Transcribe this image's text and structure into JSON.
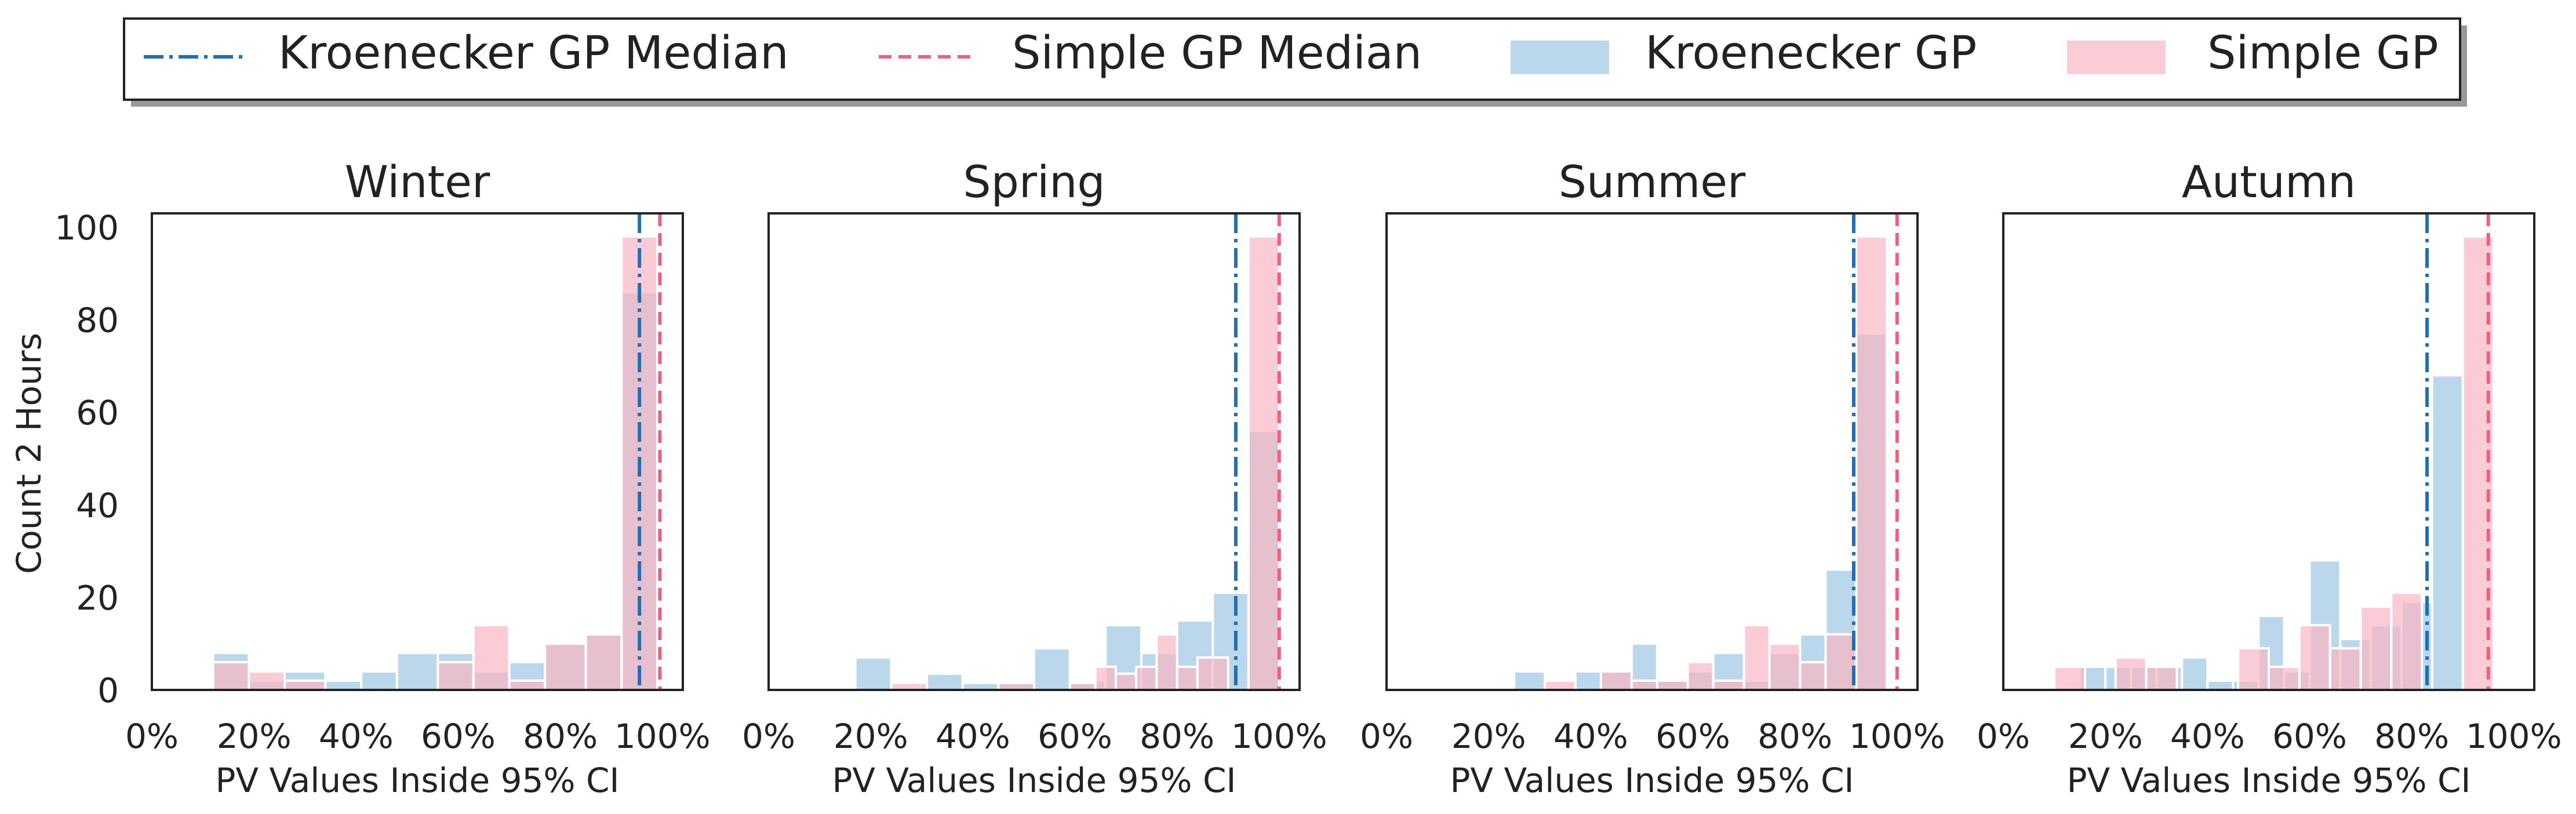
{
  "legend": {
    "items": [
      {
        "label": "Kroenecker GP Median",
        "kind": "dashdot-line",
        "color": "#1f6fb4"
      },
      {
        "label": "Simple GP Median",
        "kind": "dashed-line",
        "color": "#f0607a"
      },
      {
        "label": "Kroenecker GP",
        "kind": "patch",
        "color": "#9ec6e3"
      },
      {
        "label": "Simple GP",
        "kind": "patch",
        "color": "#f9b6c4"
      }
    ]
  },
  "colors": {
    "kroenecker": "#9ec6e3",
    "simple": "#f9b6c4",
    "kroenecker_median": "#1f6fb4",
    "simple_median": "#f0607a"
  },
  "shared": {
    "ylabel": "Count 2 Hours",
    "xlabel": "PV Values Inside 95% CI",
    "xticks": [
      "0%",
      "20%",
      "40%",
      "60%",
      "80%",
      "100%"
    ],
    "yticks": [
      "0",
      "20",
      "40",
      "60",
      "80",
      "100"
    ]
  },
  "chart_data": [
    {
      "type": "bar",
      "title": "Winter",
      "xlim": [
        0,
        104
      ],
      "ylim": [
        0,
        103
      ],
      "series": [
        {
          "name": "Kroenecker GP",
          "bars": [
            [
              12,
              19,
              8
            ],
            [
              19,
              26,
              2
            ],
            [
              26,
              34,
              4
            ],
            [
              34,
              41,
              2
            ],
            [
              41,
              48,
              4
            ],
            [
              48,
              56,
              8
            ],
            [
              56,
              63,
              8
            ],
            [
              63,
              70,
              4
            ],
            [
              70,
              77,
              6
            ],
            [
              77,
              85,
              10
            ],
            [
              85,
              92,
              12
            ],
            [
              92,
              99,
              86
            ]
          ]
        },
        {
          "name": "Simple GP",
          "bars": [
            [
              12,
              19,
              6
            ],
            [
              19,
              26,
              4
            ],
            [
              26,
              34,
              2
            ],
            [
              34,
              41,
              0
            ],
            [
              41,
              48,
              0
            ],
            [
              48,
              56,
              0
            ],
            [
              56,
              63,
              6
            ],
            [
              63,
              70,
              14
            ],
            [
              70,
              77,
              2
            ],
            [
              77,
              85,
              10
            ],
            [
              85,
              92,
              12
            ],
            [
              92,
              99,
              98
            ]
          ]
        }
      ],
      "medians": {
        "kroenecker": 95.5,
        "simple": 99.5
      }
    },
    {
      "type": "bar",
      "title": "Spring",
      "xlim": [
        0,
        104
      ],
      "ylim": [
        0,
        103
      ],
      "series": [
        {
          "name": "Kroenecker GP",
          "bars": [
            [
              17,
              24,
              7
            ],
            [
              24,
              31,
              0
            ],
            [
              31,
              38,
              3.5
            ],
            [
              38,
              45,
              1.5
            ],
            [
              45,
              52,
              1.5
            ],
            [
              52,
              59,
              9
            ],
            [
              59,
              66,
              2
            ],
            [
              66,
              73,
              14
            ],
            [
              73,
              80,
              8
            ],
            [
              80,
              87,
              15
            ],
            [
              87,
              94,
              21
            ],
            [
              94,
              100,
              56
            ]
          ]
        },
        {
          "name": "Simple GP",
          "bars": [
            [
              24,
              31,
              1.5
            ],
            [
              31,
              38,
              0
            ],
            [
              38,
              45,
              0
            ],
            [
              45,
              52,
              1.5
            ],
            [
              52,
              59,
              0
            ],
            [
              59,
              64,
              1.5
            ],
            [
              64,
              68,
              5
            ],
            [
              68,
              72,
              3.5
            ],
            [
              72,
              76,
              5
            ],
            [
              76,
              80,
              12
            ],
            [
              80,
              84,
              5
            ],
            [
              84,
              90,
              7
            ],
            [
              94,
              100,
              98
            ]
          ]
        }
      ],
      "medians": {
        "kroenecker": 91.5,
        "simple": 100
      }
    },
    {
      "type": "bar",
      "title": "Summer",
      "xlim": [
        0,
        104
      ],
      "ylim": [
        0,
        103
      ],
      "series": [
        {
          "name": "Kroenecker GP",
          "bars": [
            [
              25,
              31,
              4
            ],
            [
              31,
              37,
              0
            ],
            [
              37,
              42,
              4
            ],
            [
              42,
              48,
              4
            ],
            [
              48,
              53,
              10
            ],
            [
              53,
              59,
              2
            ],
            [
              59,
              64,
              4
            ],
            [
              64,
              70,
              8
            ],
            [
              70,
              75,
              2
            ],
            [
              75,
              81,
              8
            ],
            [
              81,
              86,
              12
            ],
            [
              86,
              92,
              26
            ],
            [
              92,
              98,
              77
            ]
          ]
        },
        {
          "name": "Simple GP",
          "bars": [
            [
              31,
              37,
              2
            ],
            [
              42,
              48,
              4
            ],
            [
              48,
              53,
              2
            ],
            [
              53,
              59,
              2
            ],
            [
              59,
              64,
              6
            ],
            [
              64,
              70,
              2
            ],
            [
              70,
              75,
              14
            ],
            [
              75,
              81,
              10
            ],
            [
              81,
              86,
              6
            ],
            [
              86,
              92,
              12
            ],
            [
              92,
              98,
              98
            ]
          ]
        }
      ],
      "medians": {
        "kroenecker": 91.5,
        "simple": 100
      }
    },
    {
      "type": "bar",
      "title": "Autumn",
      "xlim": [
        0,
        104
      ],
      "ylim": [
        0,
        103
      ],
      "series": [
        {
          "name": "Kroenecker GP",
          "bars": [
            [
              15,
              20,
              5
            ],
            [
              20,
              25,
              5
            ],
            [
              25,
              30,
              5
            ],
            [
              30,
              35,
              5
            ],
            [
              35,
              40,
              7
            ],
            [
              40,
              45,
              2
            ],
            [
              45,
              50,
              2
            ],
            [
              50,
              55,
              16
            ],
            [
              55,
              60,
              4
            ],
            [
              60,
              66,
              28
            ],
            [
              66,
              72,
              11
            ],
            [
              72,
              78,
              14
            ],
            [
              78,
              84,
              19
            ],
            [
              84,
              90,
              68
            ]
          ]
        },
        {
          "name": "Simple GP",
          "bars": [
            [
              10,
              16,
              5
            ],
            [
              16,
              22,
              0
            ],
            [
              22,
              28,
              7
            ],
            [
              28,
              34,
              5
            ],
            [
              34,
              40,
              0
            ],
            [
              40,
              46,
              0
            ],
            [
              46,
              52,
              9
            ],
            [
              52,
              58,
              5
            ],
            [
              58,
              64,
              14
            ],
            [
              64,
              70,
              9
            ],
            [
              70,
              76,
              18
            ],
            [
              76,
              82,
              21
            ],
            [
              90,
              96,
              98
            ]
          ]
        }
      ],
      "medians": {
        "kroenecker": 83,
        "simple": 95
      }
    }
  ]
}
